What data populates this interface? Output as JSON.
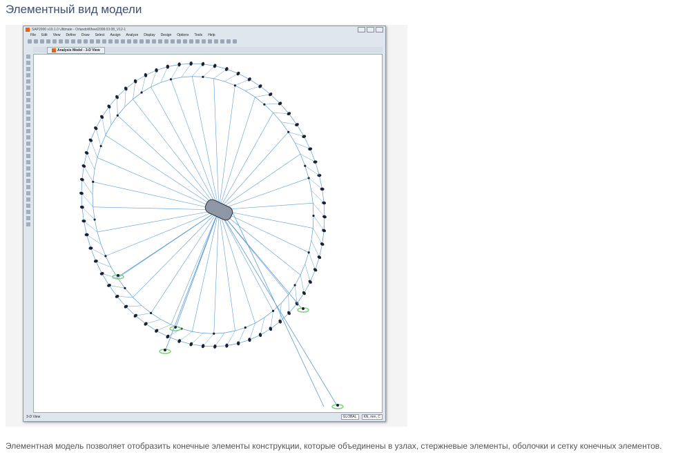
{
  "page": {
    "title": "Элементный вид модели",
    "description": "Элементная модель позволяет отобразить конечные элементы конструкции, которые объединены в узлах, стержневые элементы, оболочки и сетку конечных элементов."
  },
  "app": {
    "window_title": "SAP2000 v19.1.0 Ultimate - OrlandoWheel2008.03.08_V12-1",
    "menu": [
      "File",
      "Edit",
      "View",
      "Define",
      "Draw",
      "Select",
      "Assign",
      "Analyze",
      "Display",
      "Design",
      "Options",
      "Tools",
      "Help"
    ],
    "toolbar_text": [
      "xy",
      "xz",
      "yz",
      "nv"
    ],
    "tab": "Analysis Model - 3-D View",
    "status": {
      "view": "3-D View",
      "coord_system": "GLOBAL",
      "units": "KN, mm, C"
    }
  },
  "colors": {
    "members": "#5b9bd5",
    "nodes": "#1c2330",
    "supports": "#7fd17f",
    "title": "#3c4f6e"
  }
}
